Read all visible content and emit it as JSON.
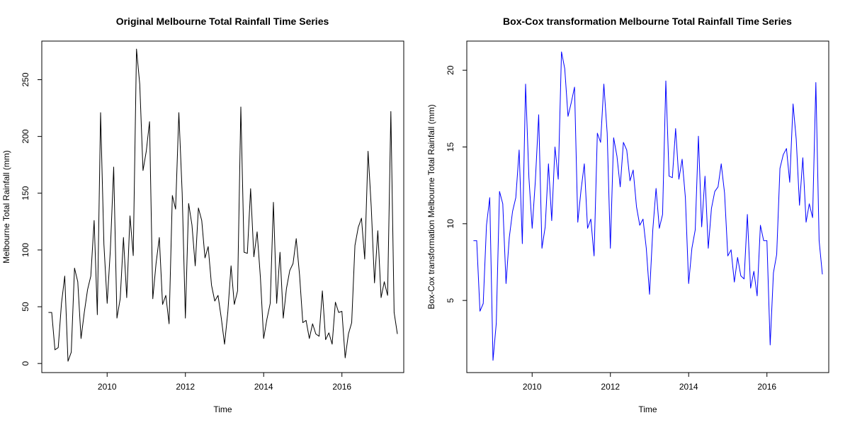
{
  "chart_data": [
    {
      "type": "line",
      "title": "Original Melbourne Total Rainfall Time Series",
      "xlabel": "Time",
      "ylabel": "Melbourne Total Rainfall (mm)",
      "xlim": [
        2008.33,
        2017.58
      ],
      "ylim": [
        -8,
        284
      ],
      "xticks": [
        2010,
        2012,
        2014,
        2016
      ],
      "yticks": [
        0,
        50,
        100,
        150,
        200,
        250
      ],
      "color": "#000000",
      "grid": false,
      "x": [
        2008.5,
        2008.583,
        2008.667,
        2008.75,
        2008.833,
        2008.917,
        2009.0,
        2009.083,
        2009.167,
        2009.25,
        2009.333,
        2009.417,
        2009.5,
        2009.583,
        2009.667,
        2009.75,
        2009.833,
        2009.917,
        2010.0,
        2010.083,
        2010.167,
        2010.25,
        2010.333,
        2010.417,
        2010.5,
        2010.583,
        2010.667,
        2010.75,
        2010.833,
        2010.917,
        2011.0,
        2011.083,
        2011.167,
        2011.25,
        2011.333,
        2011.417,
        2011.5,
        2011.583,
        2011.667,
        2011.75,
        2011.833,
        2011.917,
        2012.0,
        2012.083,
        2012.167,
        2012.25,
        2012.333,
        2012.417,
        2012.5,
        2012.583,
        2012.667,
        2012.75,
        2012.833,
        2012.917,
        2013.0,
        2013.083,
        2013.167,
        2013.25,
        2013.333,
        2013.417,
        2013.5,
        2013.583,
        2013.667,
        2013.75,
        2013.833,
        2013.917,
        2014.0,
        2014.083,
        2014.167,
        2014.25,
        2014.333,
        2014.417,
        2014.5,
        2014.583,
        2014.667,
        2014.75,
        2014.833,
        2014.917,
        2015.0,
        2015.083,
        2015.167,
        2015.25,
        2015.333,
        2015.417,
        2015.5,
        2015.583,
        2015.667,
        2015.75,
        2015.833,
        2015.917,
        2016.0,
        2016.083,
        2016.167,
        2016.25,
        2016.333,
        2016.417,
        2016.5,
        2016.583,
        2016.667,
        2016.75,
        2016.833,
        2016.917,
        2017.0,
        2017.083,
        2017.167,
        2017.25,
        2017.333,
        2017.417
      ],
      "values": [
        45,
        45,
        12,
        14,
        53,
        77,
        2,
        10,
        84,
        72,
        22,
        45,
        65,
        77,
        126,
        43,
        221,
        105,
        53,
        100,
        173,
        40,
        57,
        111,
        58,
        130,
        95,
        277,
        246,
        170,
        187,
        213,
        57,
        88,
        111,
        52,
        60,
        35,
        148,
        136,
        221,
        150,
        40,
        141,
        122,
        86,
        137,
        126,
        93,
        103,
        69,
        55,
        60,
        40,
        17,
        45,
        86,
        52,
        64,
        226,
        98,
        97,
        154,
        94,
        116,
        76,
        22,
        39,
        53,
        142,
        53,
        98,
        40,
        66,
        82,
        88,
        110,
        78,
        36,
        38,
        22,
        35,
        26,
        24,
        64,
        21,
        27,
        17,
        54,
        45,
        46,
        5,
        26,
        36,
        104,
        120,
        128,
        92,
        187,
        138,
        71,
        117,
        58,
        72,
        60,
        222,
        45,
        26
      ]
    },
    {
      "type": "line",
      "title": "Box-Cox transformation Melbourne Total Rainfall Time Series",
      "xlabel": "Time",
      "ylabel": "Box-Cox transformation Melbourne Total Rainfall (mm)",
      "xlim": [
        2008.33,
        2017.58
      ],
      "ylim": [
        0.3,
        21.9
      ],
      "xticks": [
        2010,
        2012,
        2014,
        2016
      ],
      "yticks": [
        5,
        10,
        15,
        20
      ],
      "color": "#0000ff",
      "grid": false,
      "x": [
        2008.5,
        2008.583,
        2008.667,
        2008.75,
        2008.833,
        2008.917,
        2009.0,
        2009.083,
        2009.167,
        2009.25,
        2009.333,
        2009.417,
        2009.5,
        2009.583,
        2009.667,
        2009.75,
        2009.833,
        2009.917,
        2010.0,
        2010.083,
        2010.167,
        2010.25,
        2010.333,
        2010.417,
        2010.5,
        2010.583,
        2010.667,
        2010.75,
        2010.833,
        2010.917,
        2011.0,
        2011.083,
        2011.167,
        2011.25,
        2011.333,
        2011.417,
        2011.5,
        2011.583,
        2011.667,
        2011.75,
        2011.833,
        2011.917,
        2012.0,
        2012.083,
        2012.167,
        2012.25,
        2012.333,
        2012.417,
        2012.5,
        2012.583,
        2012.667,
        2012.75,
        2012.833,
        2012.917,
        2013.0,
        2013.083,
        2013.167,
        2013.25,
        2013.333,
        2013.417,
        2013.5,
        2013.583,
        2013.667,
        2013.75,
        2013.833,
        2013.917,
        2014.0,
        2014.083,
        2014.167,
        2014.25,
        2014.333,
        2014.417,
        2014.5,
        2014.583,
        2014.667,
        2014.75,
        2014.833,
        2014.917,
        2015.0,
        2015.083,
        2015.167,
        2015.25,
        2015.333,
        2015.417,
        2015.5,
        2015.583,
        2015.667,
        2015.75,
        2015.833,
        2015.917,
        2016.0,
        2016.083,
        2016.167,
        2016.25,
        2016.333,
        2016.417,
        2016.5,
        2016.583,
        2016.667,
        2016.75,
        2016.833,
        2016.917,
        2017.0,
        2017.083,
        2017.167,
        2017.25,
        2017.333,
        2017.417
      ],
      "values": [
        8.9,
        8.9,
        4.3,
        4.8,
        9.9,
        11.7,
        1.1,
        3.5,
        12.1,
        11.3,
        6.1,
        9.1,
        10.8,
        11.7,
        14.8,
        8.7,
        19.1,
        13.0,
        9.7,
        12.8,
        17.1,
        8.4,
        9.8,
        13.9,
        10.2,
        15.0,
        12.9,
        21.2,
        20.1,
        17.0,
        17.9,
        18.9,
        10.1,
        12.2,
        13.9,
        9.7,
        10.3,
        7.9,
        15.9,
        15.3,
        19.1,
        15.9,
        8.4,
        15.6,
        14.4,
        12.4,
        15.3,
        14.8,
        12.8,
        13.5,
        11.1,
        9.9,
        10.3,
        8.4,
        5.4,
        9.6,
        12.3,
        9.7,
        10.6,
        19.3,
        13.1,
        13.0,
        16.2,
        12.9,
        14.2,
        11.7,
        6.1,
        8.4,
        9.6,
        15.7,
        9.8,
        13.1,
        8.4,
        11.0,
        12.1,
        12.4,
        13.9,
        12.0,
        7.9,
        8.3,
        6.2,
        7.8,
        6.6,
        6.4,
        10.6,
        5.8,
        6.9,
        5.3,
        9.9,
        8.9,
        8.9,
        2.1,
        6.8,
        8.0,
        13.6,
        14.5,
        14.9,
        12.7,
        17.8,
        15.5,
        11.2,
        14.3,
        10.1,
        11.3,
        10.4,
        19.2,
        8.9,
        6.7
      ]
    }
  ]
}
